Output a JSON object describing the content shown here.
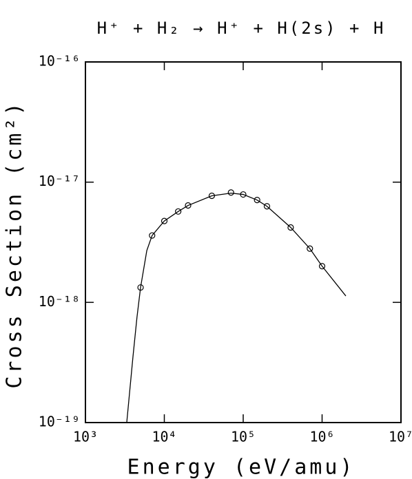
{
  "chart_data": {
    "type": "line",
    "title": "H⁺ + H₂ → H⁺ + H(2s) + H",
    "xlabel": "Energy (eV/amu)",
    "ylabel": "Cross Section (cm²)",
    "xscale": "log",
    "yscale": "log",
    "xlim": [
      1000,
      10000000
    ],
    "ylim": [
      1e-19,
      1e-16
    ],
    "xticks": [
      {
        "value": 1000,
        "label": "10³"
      },
      {
        "value": 10000,
        "label": "10⁴"
      },
      {
        "value": 100000,
        "label": "10⁵"
      },
      {
        "value": 1000000,
        "label": "10⁶"
      },
      {
        "value": 10000000,
        "label": "10⁷"
      }
    ],
    "yticks": [
      {
        "value": 1e-19,
        "label": "10⁻¹⁹"
      },
      {
        "value": 1e-18,
        "label": "10⁻¹⁸"
      },
      {
        "value": 1e-17,
        "label": "10⁻¹⁷"
      },
      {
        "value": 1e-16,
        "label": "10⁻¹⁶"
      }
    ],
    "series": [
      {
        "mode": "lines",
        "color": "#000000",
        "x": [
          3340,
          4000,
          4500,
          5000,
          6000,
          7000,
          10000,
          15000,
          20000,
          40000,
          70000,
          100000,
          150000,
          200000,
          400000,
          700000,
          1000000,
          2000000
        ],
        "values": [
          1e-19,
          3.5e-19,
          7.5e-19,
          1.33e-18,
          2.7e-18,
          3.6e-18,
          4.75e-18,
          5.7e-18,
          6.4e-18,
          7.7e-18,
          8.1e-18,
          7.9e-18,
          7.1e-18,
          6.3e-18,
          4.2e-18,
          2.8e-18,
          2e-18,
          1.13e-18
        ]
      },
      {
        "mode": "markers",
        "color": "#000000",
        "x": [
          5000,
          7000,
          10000,
          15000,
          20000,
          40000,
          70000,
          100000,
          150000,
          200000,
          400000,
          700000,
          1000000
        ],
        "values": [
          1.33e-18,
          3.6e-18,
          4.75e-18,
          5.7e-18,
          6.4e-18,
          7.7e-18,
          8.2e-18,
          7.9e-18,
          7.1e-18,
          6.3e-18,
          4.2e-18,
          2.8e-18,
          2e-18
        ]
      }
    ]
  }
}
